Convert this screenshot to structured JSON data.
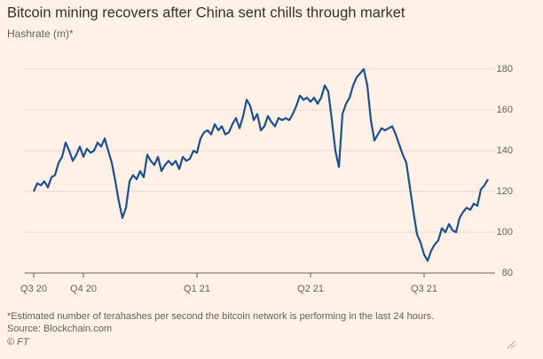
{
  "chart_data": {
    "type": "line",
    "title": "Bitcoin mining recovers after China sent chills through market",
    "subtitle": "Hashrate (m)*",
    "note": "*Estimated number of terahashes per second the bitcoin network is performing in the last 24 hours.",
    "source": "Source: Blockchain.com",
    "credit": "© FT",
    "color": "#1d4f91",
    "grid": true,
    "ylim": [
      80,
      180
    ],
    "yticks": [
      80,
      100,
      120,
      140,
      160,
      180
    ],
    "categories": [
      "Q3 20",
      null,
      null,
      null,
      null,
      null,
      null,
      null,
      null,
      null,
      null,
      null,
      null,
      null,
      "Q4 20",
      null,
      null,
      null,
      null,
      null,
      null,
      null,
      null,
      null,
      null,
      null,
      null,
      null,
      null,
      null,
      null,
      null,
      null,
      null,
      null,
      null,
      null,
      null,
      null,
      null,
      null,
      null,
      null,
      null,
      null,
      null,
      "Q1 21",
      null,
      null,
      null,
      null,
      null,
      null,
      null,
      null,
      null,
      null,
      null,
      null,
      null,
      null,
      null,
      null,
      null,
      null,
      null,
      null,
      null,
      null,
      null,
      null,
      null,
      null,
      null,
      null,
      null,
      null,
      null,
      "Q2 21",
      null,
      null,
      null,
      null,
      null,
      null,
      null,
      null,
      null,
      null,
      null,
      null,
      null,
      null,
      null,
      null,
      null,
      null,
      null,
      null,
      null,
      null,
      null,
      null,
      null,
      null,
      null,
      null,
      null,
      null,
      null,
      "Q3 21",
      null,
      null,
      null,
      null,
      null,
      null,
      null,
      null,
      null,
      null,
      null,
      null,
      null,
      null,
      null,
      null,
      null,
      null
    ],
    "values": [
      120,
      124,
      123,
      125,
      122,
      127,
      128,
      134,
      137,
      144,
      140,
      135,
      138,
      142,
      137,
      141,
      139,
      140,
      144,
      142,
      146,
      140,
      134,
      125,
      115,
      107,
      112,
      125,
      128,
      126,
      130,
      127,
      138,
      135,
      133,
      137,
      130,
      133,
      135,
      133,
      135,
      131,
      137,
      135,
      136,
      140,
      139,
      146,
      149,
      150,
      148,
      153,
      150,
      152,
      148,
      149,
      153,
      156,
      151,
      157,
      165,
      162,
      155,
      158,
      150,
      152,
      157,
      154,
      152,
      156,
      155,
      156,
      155,
      158,
      162,
      167,
      165,
      166,
      164,
      166,
      163,
      166,
      172,
      169,
      155,
      140,
      132,
      158,
      163,
      166,
      172,
      176,
      178,
      180,
      172,
      155,
      145,
      148,
      151,
      150,
      151,
      152,
      148,
      143,
      138,
      134,
      122,
      110,
      99,
      95,
      89,
      86,
      91,
      94,
      96,
      102,
      100,
      104,
      101,
      100,
      107,
      110,
      112,
      111,
      114,
      113,
      121,
      123,
      126
    ]
  }
}
